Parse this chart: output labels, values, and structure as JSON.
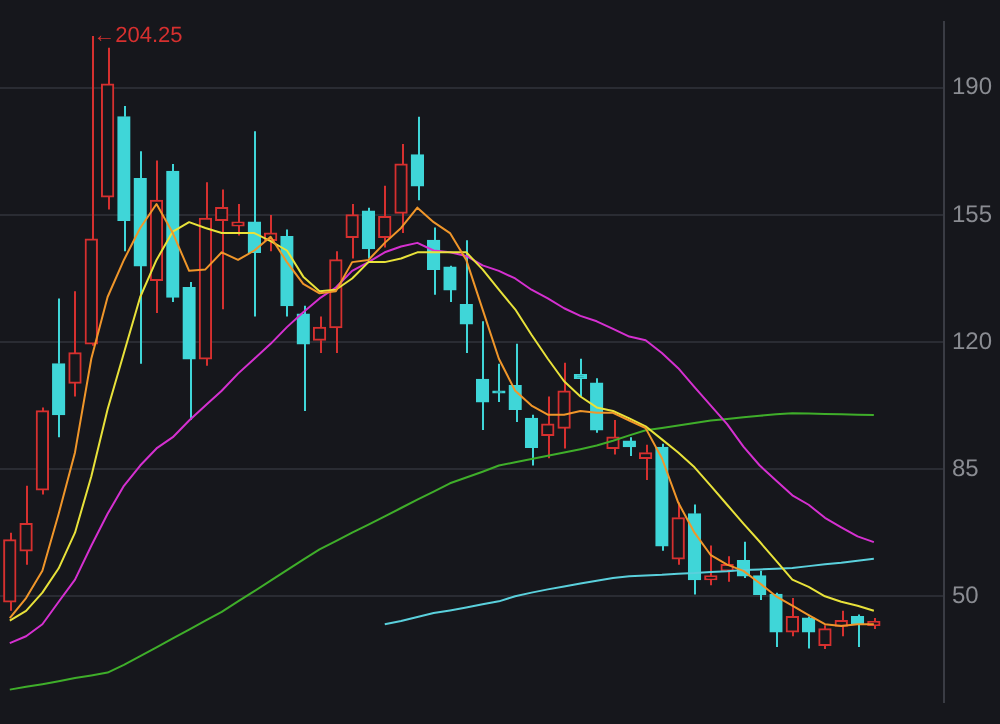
{
  "chart_data": {
    "type": "candlestick",
    "categories": [
      null,
      null,
      null,
      null,
      null,
      null,
      null,
      null,
      null,
      null,
      null,
      null,
      null,
      null,
      null,
      null,
      null,
      null,
      null,
      null,
      null,
      null,
      null,
      null,
      null,
      null,
      null,
      null,
      null,
      null,
      null,
      null,
      null,
      null,
      null,
      null,
      null,
      null,
      null,
      null,
      null,
      null,
      null,
      null,
      null,
      null,
      null,
      null,
      null,
      null,
      null,
      null,
      null,
      null
    ],
    "ohlc": [
      [
        48.5,
        67.5,
        46,
        65.5
      ],
      [
        62.5,
        80.4,
        58.7,
        70
      ],
      [
        79.3,
        102,
        78,
        101
      ],
      [
        114,
        132,
        93.8,
        100
      ],
      [
        108.7,
        134,
        105,
        117
      ],
      [
        119.5,
        204.25,
        119,
        148.3
      ],
      [
        160,
        201,
        156.5,
        191
      ],
      [
        182,
        185,
        145,
        153.5
      ],
      [
        165,
        172.5,
        114,
        141
      ],
      [
        137,
        170,
        128,
        159
      ],
      [
        167,
        169,
        131,
        132.4
      ],
      [
        135,
        136.5,
        98.5,
        115.4
      ],
      [
        115.4,
        164,
        113.5,
        154
      ],
      [
        153.5,
        162,
        129,
        157
      ],
      [
        152,
        158,
        149.3,
        153
      ],
      [
        153,
        178,
        127,
        144.7
      ],
      [
        148,
        155,
        145,
        150
      ],
      [
        149,
        151,
        127,
        130
      ],
      [
        127.7,
        130,
        101,
        119.5
      ],
      [
        120.5,
        127,
        117,
        124
      ],
      [
        124,
        145,
        117,
        142.6
      ],
      [
        148.8,
        158,
        143,
        155
      ],
      [
        156,
        157,
        143,
        145.7
      ],
      [
        148.8,
        163,
        146,
        154.5
      ],
      [
        155.5,
        174.5,
        150,
        169
      ],
      [
        171.5,
        182,
        159,
        163
      ],
      [
        148,
        151.5,
        133,
        140
      ],
      [
        140.6,
        141,
        131,
        134.4
      ],
      [
        130.3,
        148,
        117,
        125
      ],
      [
        109.7,
        125.7,
        95.8,
        103.5
      ],
      [
        106.5,
        114,
        103.5,
        106
      ],
      [
        108,
        119.5,
        98,
        101.5
      ],
      [
        99,
        100,
        86,
        91
      ],
      [
        94.3,
        105,
        88,
        97.4
      ],
      [
        96.3,
        114.3,
        90.7,
        106.5
      ],
      [
        111,
        115.4,
        105,
        110
      ],
      [
        108.7,
        110,
        95,
        95.8
      ],
      [
        90.7,
        98.5,
        89,
        93.8
      ],
      [
        92.7,
        93.8,
        88.6,
        91.2
      ],
      [
        88,
        91.7,
        82,
        89.5
      ],
      [
        91,
        92,
        62.5,
        63.9
      ],
      [
        60.3,
        75.8,
        58.7,
        71.6
      ],
      [
        72.7,
        75.3,
        50.5,
        54.6
      ],
      [
        54.6,
        64,
        53,
        55.6
      ],
      [
        57,
        61,
        54,
        58.7
      ],
      [
        59.8,
        65,
        55,
        55.6
      ],
      [
        55.6,
        57,
        49,
        50.5
      ],
      [
        50.5,
        51,
        36,
        40.2
      ],
      [
        40.2,
        49.5,
        39,
        44.4
      ],
      [
        44,
        44.4,
        35.6,
        40.2
      ],
      [
        36.5,
        42,
        35.5,
        41
      ],
      [
        41.8,
        46,
        39,
        43.3
      ],
      [
        44.4,
        45,
        36,
        42.3
      ],
      [
        42,
        44,
        41,
        43
      ]
    ],
    "colors": [
      "#d6302f",
      "#d6302f",
      "#d6302f",
      "#3fd6d8",
      "#d6302f",
      "#d6302f",
      "#d6302f",
      "#3fd6d8",
      "#3fd6d8",
      "#d6302f",
      "#3fd6d8",
      "#3fd6d8",
      "#d6302f",
      "#d6302f",
      "#d6302f",
      "#3fd6d8",
      "#d6302f",
      "#3fd6d8",
      "#3fd6d8",
      "#d6302f",
      "#d6302f",
      "#d6302f",
      "#3fd6d8",
      "#d6302f",
      "#d6302f",
      "#3fd6d8",
      "#3fd6d8",
      "#3fd6d8",
      "#3fd6d8",
      "#3fd6d8",
      "#3fd6d8",
      "#3fd6d8",
      "#3fd6d8",
      "#d6302f",
      "#d6302f",
      "#3fd6d8",
      "#3fd6d8",
      "#d6302f",
      "#3fd6d8",
      "#d6302f",
      "#3fd6d8",
      "#d6302f",
      "#3fd6d8",
      "#d6302f",
      "#d6302f",
      "#3fd6d8",
      "#3fd6d8",
      "#3fd6d8",
      "#d6302f",
      "#3fd6d8",
      "#d6302f",
      "#d6302f",
      "#3fd6d8",
      "#d6302f"
    ],
    "series": [
      {
        "type": "line",
        "color": "#f0962a",
        "values": [
          44,
          49.5,
          57,
          72.7,
          89.6,
          115.4,
          132.4,
          142.6,
          151.4,
          158,
          150,
          139.6,
          140,
          144.7,
          142.6,
          145.2,
          149,
          142,
          136,
          133.4,
          134,
          142,
          142.6,
          147.3,
          151.4,
          157,
          153,
          150,
          142.6,
          129,
          115.4,
          106.6,
          102.5,
          100,
          100,
          101,
          100.5,
          100.5,
          98.4,
          96.3,
          88,
          75.8,
          67.5,
          61.3,
          58.7,
          57,
          53.6,
          50,
          47.4,
          44.8,
          42.3,
          41.8,
          42.3,
          42.3
        ]
      },
      {
        "type": "line",
        "color": "#e8e23a",
        "values": [
          43.3,
          46,
          51,
          57.7,
          67.5,
          83,
          101.5,
          117,
          132.4,
          142.6,
          150.4,
          153,
          151.4,
          150,
          150,
          150,
          147.8,
          145.2,
          138,
          134,
          134.4,
          137.5,
          142,
          142,
          143,
          144.7,
          144.7,
          144.7,
          144.7,
          140,
          134.4,
          129,
          122,
          115.4,
          109.2,
          105,
          102,
          101,
          99,
          96.8,
          93.2,
          89.6,
          85.5,
          80.4,
          75.2,
          70,
          65,
          59.8,
          54.6,
          52.6,
          50,
          48.5,
          47.4,
          46
        ]
      },
      {
        "type": "line",
        "color": "#d530d0",
        "values": [
          37.1,
          39,
          42.3,
          48.5,
          54.6,
          63.9,
          72.7,
          80.4,
          86,
          90.7,
          93.8,
          98.4,
          102.5,
          106.6,
          111.3,
          115.4,
          119.5,
          124.1,
          128.2,
          132,
          135,
          139.6,
          142,
          144.7,
          146.3,
          147.3,
          145.2,
          144.7,
          143.7,
          141.1,
          139.6,
          137.5,
          134.4,
          132,
          129.3,
          127.2,
          125.7,
          123.6,
          121.5,
          120.5,
          117,
          112.8,
          107.6,
          102.5,
          97.4,
          91.2,
          86,
          81.9,
          77.8,
          75.2,
          71.6,
          69,
          66.5,
          64.9
        ]
      },
      {
        "type": "line",
        "color": "#3fae2a",
        "values": [
          24.3,
          25.1,
          25.8,
          26.6,
          27.5,
          28.2,
          29,
          31.1,
          33.5,
          35.9,
          38.4,
          40.8,
          43.3,
          45.7,
          48.6,
          51.4,
          54.3,
          57.2,
          60.1,
          62.9,
          65.2,
          67.5,
          69.7,
          72,
          74.3,
          76.6,
          78.8,
          81.1,
          82.7,
          84.3,
          86,
          86.9,
          87.8,
          88.7,
          89.6,
          90.5,
          91.5,
          92.8,
          94.3,
          95.7,
          96.3,
          97,
          97.7,
          98.4,
          98.8,
          99.3,
          99.7,
          100.1,
          100.4,
          100.3,
          100.2,
          100.1,
          100,
          99.9
        ]
      },
      {
        "type": "line",
        "color": "#5ad0dc",
        "values": [
          null,
          null,
          null,
          null,
          null,
          null,
          null,
          null,
          null,
          null,
          null,
          null,
          null,
          null,
          null,
          null,
          null,
          null,
          null,
          null,
          null,
          null,
          null,
          42.3,
          43.2,
          44.3,
          45.4,
          46.1,
          46.9,
          47.8,
          48.6,
          50,
          51,
          51.9,
          52.7,
          53.5,
          54.3,
          55,
          55.5,
          55.7,
          55.9,
          56.2,
          56.4,
          56.7,
          56.9,
          57.2,
          57.4,
          57.6,
          57.8,
          58.3,
          58.8,
          59.2,
          59.8,
          60.3
        ]
      }
    ],
    "ylim": [
      21,
      208
    ],
    "yticks": [
      50,
      85,
      120,
      155,
      190
    ],
    "grid": "y",
    "tick_labels": "y",
    "annotations": [
      "←204.25"
    ]
  }
}
